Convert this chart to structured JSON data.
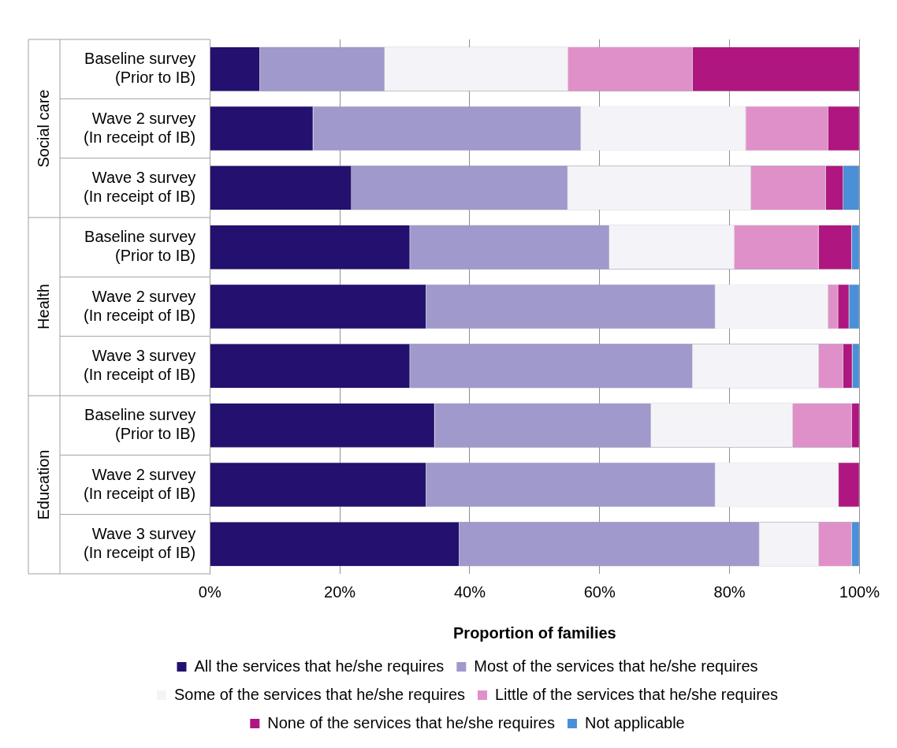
{
  "chart_data": {
    "type": "bar",
    "orientation": "horizontal",
    "stacked": true,
    "categories": [
      "Baseline survey\n(Prior to IB)",
      "Wave 2 survey\n(In receipt of IB)",
      "Wave 3 survey\n(In receipt of IB)",
      "Baseline survey\n(Prior to IB)",
      "Wave 2 survey\n(In receipt of IB)",
      "Wave 3 survey\n(In receipt of IB)",
      "Baseline survey\n(Prior to IB)",
      "Wave 2 survey\n(In receipt of IB)",
      "Wave 3 survey\n(In receipt of IB)"
    ],
    "series": [
      {
        "name": "All the services that he/she requires",
        "color": "#24106e",
        "values": [
          7.7,
          15.9,
          21.8,
          30.8,
          33.3,
          30.8,
          34.6,
          33.3,
          38.4
        ]
      },
      {
        "name": "Most of the services that he/she requires",
        "color": "#a099cc",
        "values": [
          19.2,
          41.2,
          33.3,
          30.7,
          44.5,
          43.5,
          33.3,
          44.5,
          46.2
        ]
      },
      {
        "name": "Some of the services that he/she requires",
        "color": "#f4f4f8",
        "values": [
          28.2,
          25.4,
          28.2,
          19.2,
          17.4,
          19.4,
          21.8,
          19.0,
          9.1
        ]
      },
      {
        "name": "Little of the services that he/she requires",
        "color": "#e090c8",
        "values": [
          19.2,
          12.7,
          11.5,
          13.0,
          1.5,
          3.8,
          9.1,
          0,
          5.1
        ]
      },
      {
        "name": "None of the services that he/she requires",
        "color": "#b0167f",
        "values": [
          25.7,
          4.8,
          2.7,
          5.1,
          1.7,
          1.4,
          1.2,
          3.2,
          0
        ]
      },
      {
        "name": "Not applicable",
        "color": "#4a8fd8",
        "values": [
          0,
          0,
          2.5,
          1.2,
          1.6,
          1.1,
          0,
          0,
          1.2
        ]
      }
    ],
    "xlim": [
      0,
      100
    ],
    "xticks": [
      {
        "value": 0,
        "label": "0%"
      },
      {
        "value": 20,
        "label": "20%"
      },
      {
        "value": 40,
        "label": "40%"
      },
      {
        "value": 60,
        "label": "60%"
      },
      {
        "value": 80,
        "label": "80%"
      },
      {
        "value": 100,
        "label": "100%"
      }
    ],
    "xlabel": "Proportion of families",
    "annotations": [
      "Social care",
      "Health",
      "Education"
    ],
    "grid": "x",
    "legend": "bottom"
  }
}
